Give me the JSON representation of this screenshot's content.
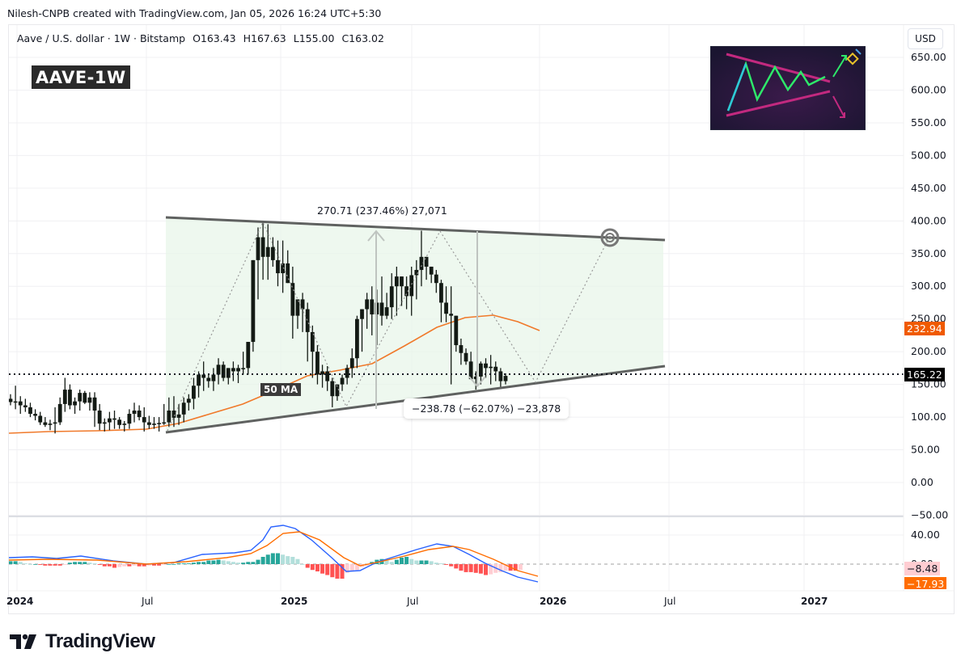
{
  "header": {
    "credit": "Nilesh-CNPB created with TradingView.com, Jan 05, 2026 16:24 UTC+5:30"
  },
  "legend": {
    "symbol": "Aave / U.S. dollar · 1W · Bitstamp",
    "open": "O163.43",
    "high": "H167.63",
    "low": "L155.00",
    "close": "C163.02"
  },
  "chart_tag": "AAVE-1W",
  "currency_button": "USD",
  "price_axis": {
    "ticks": [
      "650.00",
      "600.00",
      "550.00",
      "500.00",
      "450.00",
      "400.00",
      "350.00",
      "300.00",
      "250.00",
      "200.00",
      "150.00",
      "100.00",
      "50.00",
      "0.00",
      "−50.00"
    ],
    "last_price": "165.22",
    "ma_value": "232.94",
    "ma_color": "#f05a00",
    "last_color": "#000000"
  },
  "macd_axis": {
    "ticks": [
      "40.00",
      "0.00"
    ],
    "hist_value": "−8.48",
    "signal_value": "−17.93"
  },
  "time_axis": {
    "labels": [
      {
        "text": "2024",
        "bold": true
      },
      {
        "text": "Jul",
        "bold": false
      },
      {
        "text": "2025",
        "bold": true
      },
      {
        "text": "Jul",
        "bold": false
      },
      {
        "text": "2026",
        "bold": true
      },
      {
        "text": "Jul",
        "bold": false
      },
      {
        "text": "2027",
        "bold": true
      }
    ]
  },
  "annotations": {
    "measure_up": "270.71 (237.46%) 27,071",
    "measure_down": "−238.78 (−62.07%) −23,878",
    "ma_label": "50 MA"
  },
  "footer": {
    "logo_text": "TradingView"
  },
  "chart_data": {
    "type": "candlestick",
    "title": "Aave / U.S. dollar · 1W · Bitstamp",
    "timeframe": "1W",
    "ohlc_last": {
      "open": 163.43,
      "high": 167.63,
      "low": 155.0,
      "close": 163.02
    },
    "ylim": [
      -50,
      660
    ],
    "y_ticks": [
      650,
      600,
      550,
      500,
      450,
      400,
      350,
      300,
      250,
      200,
      150,
      100,
      50,
      0,
      -50
    ],
    "x_labels": [
      "2024",
      "Jul",
      "2025",
      "Jul",
      "2026",
      "Jul",
      "2027"
    ],
    "last_price": 165.22,
    "series": [
      {
        "name": "50 MA",
        "color": "#f0792a",
        "last_value": 232.94
      },
      {
        "name": "MACD",
        "color": "#2962ff",
        "last_value": -17.93
      },
      {
        "name": "Signal",
        "color": "#ff6d00",
        "last_value": -8.48
      }
    ],
    "patterns": {
      "symmetrical_triangle": {
        "upper_line": [
          {
            "date": "2024-07",
            "price": 405
          },
          {
            "date": "2026-06",
            "price": 372
          }
        ],
        "lower_line": [
          {
            "date": "2024-07",
            "price": 77
          },
          {
            "date": "2026-06",
            "price": 176
          }
        ]
      },
      "measure_up": {
        "change": 270.71,
        "pct": 237.46,
        "ticks": 27071
      },
      "measure_down": {
        "change": -238.78,
        "pct": -62.07,
        "ticks": -23878
      },
      "projection_target": {
        "date": "2026-04",
        "price": 378
      }
    },
    "candles_weekly": [
      [
        128,
        135,
        118,
        123
      ],
      [
        123,
        148,
        112,
        124
      ],
      [
        124,
        132,
        105,
        118
      ],
      [
        118,
        128,
        108,
        115
      ],
      [
        115,
        122,
        100,
        105
      ],
      [
        105,
        112,
        95,
        102
      ],
      [
        102,
        108,
        88,
        92
      ],
      [
        92,
        100,
        85,
        88
      ],
      [
        88,
        96,
        80,
        90
      ],
      [
        90,
        115,
        75,
        92
      ],
      [
        92,
        130,
        88,
        120
      ],
      [
        120,
        160,
        108,
        142
      ],
      [
        142,
        150,
        112,
        118
      ],
      [
        118,
        130,
        105,
        124
      ],
      [
        124,
        142,
        110,
        137
      ],
      [
        137,
        140,
        120,
        122
      ],
      [
        122,
        138,
        110,
        130
      ],
      [
        130,
        138,
        85,
        110
      ],
      [
        110,
        120,
        80,
        90
      ],
      [
        90,
        98,
        78,
        92
      ],
      [
        92,
        108,
        80,
        98
      ],
      [
        98,
        110,
        82,
        96
      ],
      [
        96,
        100,
        82,
        88
      ],
      [
        88,
        94,
        78,
        90
      ],
      [
        90,
        112,
        82,
        105
      ],
      [
        105,
        122,
        92,
        110
      ],
      [
        110,
        118,
        95,
        100
      ],
      [
        100,
        115,
        78,
        92
      ],
      [
        92,
        102,
        82,
        88
      ],
      [
        88,
        100,
        82,
        90
      ],
      [
        90,
        100,
        78,
        91
      ],
      [
        91,
        120,
        88,
        92
      ],
      [
        92,
        130,
        85,
        110
      ],
      [
        110,
        132,
        85,
        99
      ],
      [
        99,
        120,
        88,
        104
      ],
      [
        104,
        130,
        92,
        122
      ],
      [
        122,
        135,
        110,
        128
      ],
      [
        128,
        160,
        112,
        148
      ],
      [
        148,
        170,
        130,
        165
      ],
      [
        165,
        185,
        140,
        160
      ],
      [
        160,
        165,
        145,
        155
      ],
      [
        155,
        175,
        140,
        165
      ],
      [
        165,
        190,
        150,
        180
      ],
      [
        180,
        185,
        155,
        160
      ],
      [
        160,
        175,
        150,
        175
      ],
      [
        175,
        185,
        155,
        170
      ],
      [
        170,
        180,
        152,
        175
      ],
      [
        175,
        200,
        165,
        175
      ],
      [
        175,
        215,
        165,
        215
      ],
      [
        215,
        320,
        200,
        340
      ],
      [
        340,
        390,
        280,
        375
      ],
      [
        375,
        400,
        310,
        345
      ],
      [
        345,
        395,
        310,
        360
      ],
      [
        360,
        375,
        330,
        340
      ],
      [
        340,
        370,
        300,
        320
      ],
      [
        320,
        370,
        290,
        335
      ],
      [
        335,
        355,
        305,
        305
      ],
      [
        305,
        330,
        220,
        255
      ],
      [
        255,
        275,
        235,
        280
      ],
      [
        280,
        290,
        230,
        265
      ],
      [
        265,
        275,
        185,
        230
      ],
      [
        230,
        240,
        160,
        200
      ],
      [
        200,
        210,
        150,
        165
      ],
      [
        165,
        180,
        145,
        170
      ],
      [
        170,
        178,
        140,
        155
      ],
      [
        155,
        160,
        115,
        132
      ],
      [
        132,
        150,
        125,
        150
      ],
      [
        150,
        165,
        140,
        160
      ],
      [
        160,
        180,
        150,
        175
      ],
      [
        175,
        205,
        160,
        190
      ],
      [
        190,
        255,
        175,
        250
      ],
      [
        250,
        265,
        200,
        265
      ],
      [
        265,
        290,
        235,
        280
      ],
      [
        280,
        300,
        225,
        257
      ],
      [
        257,
        295,
        210,
        275
      ],
      [
        275,
        315,
        240,
        255
      ],
      [
        255,
        290,
        250,
        268
      ],
      [
        268,
        320,
        250,
        300
      ],
      [
        300,
        330,
        255,
        315
      ],
      [
        315,
        310,
        270,
        300
      ],
      [
        300,
        315,
        265,
        285
      ],
      [
        285,
        330,
        255,
        317
      ],
      [
        317,
        340,
        280,
        325
      ],
      [
        325,
        385,
        300,
        345
      ],
      [
        345,
        340,
        310,
        330
      ],
      [
        330,
        325,
        305,
        318
      ],
      [
        318,
        325,
        290,
        305
      ],
      [
        305,
        310,
        245,
        275
      ],
      [
        275,
        300,
        245,
        258
      ],
      [
        258,
        300,
        150,
        255
      ],
      [
        255,
        245,
        200,
        210
      ],
      [
        210,
        220,
        180,
        198
      ],
      [
        198,
        205,
        180,
        185
      ],
      [
        185,
        200,
        165,
        158
      ],
      [
        158,
        170,
        142,
        162
      ],
      [
        162,
        185,
        150,
        182
      ],
      [
        182,
        190,
        160,
        175
      ],
      [
        175,
        195,
        150,
        177
      ],
      [
        177,
        185,
        155,
        170
      ],
      [
        170,
        175,
        145,
        155
      ],
      [
        155,
        167,
        150,
        163
      ]
    ]
  }
}
